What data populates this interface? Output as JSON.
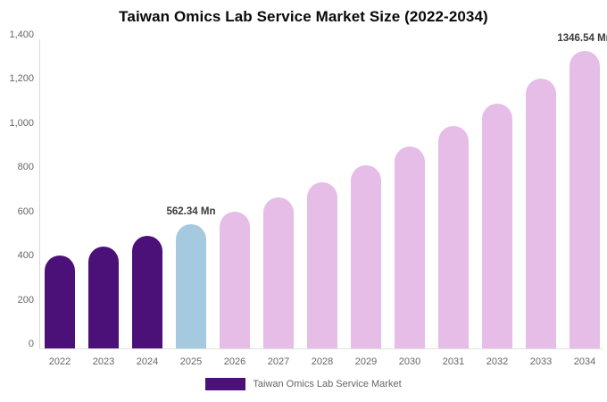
{
  "chart_data": {
    "type": "bar",
    "title": "Taiwan Omics Lab Service Market Size (2022-2034)",
    "categories": [
      "2022",
      "2023",
      "2024",
      "2025",
      "2026",
      "2027",
      "2028",
      "2029",
      "2030",
      "2031",
      "2032",
      "2033",
      "2034"
    ],
    "series": [
      {
        "name": "Taiwan Omics Lab Service Market",
        "values": [
          420.33,
          463.15,
          510.34,
          562.34,
          619.63,
          682.76,
          752.32,
          828.97,
          913.43,
          1006.49,
          1109.03,
          1222.03,
          1346.54
        ]
      }
    ],
    "value_unit": "Mn",
    "bar_colors": [
      "#4B1179",
      "#4B1179",
      "#4B1179",
      "#A5C9DE",
      "#E5BDE7",
      "#E5BDE7",
      "#E5BDE7",
      "#E5BDE7",
      "#E5BDE7",
      "#E5BDE7",
      "#E5BDE7",
      "#E5BDE7",
      "#E5BDE7"
    ],
    "data_labels": [
      {
        "index": 3,
        "text": "562.34 Mn"
      },
      {
        "index": 12,
        "text": "1346.54 Mn"
      }
    ],
    "y_ticks": [
      {
        "value": 0,
        "label": "0"
      },
      {
        "value": 200,
        "label": "200"
      },
      {
        "value": 400,
        "label": "400"
      },
      {
        "value": 600,
        "label": "600"
      },
      {
        "value": 800,
        "label": "800"
      },
      {
        "value": 1000,
        "label": "1,000"
      },
      {
        "value": 1200,
        "label": "1,200"
      },
      {
        "value": 1400,
        "label": "1,400"
      }
    ],
    "ylim": [
      0,
      1400
    ],
    "grid": false,
    "legend_position": "bottom",
    "colors": {
      "historical_bar": "#4B1179",
      "base_year_bar": "#A5C9DE",
      "forecast_bar": "#E5BDE7",
      "axis_line": "#D9D9D9",
      "tick_text": "#666666",
      "title_text": "#0A0A0A",
      "data_label_text": "#3A3A3A"
    },
    "legend": {
      "label": "Taiwan Omics Lab Service Market",
      "swatch_color": "#4B1179"
    }
  }
}
